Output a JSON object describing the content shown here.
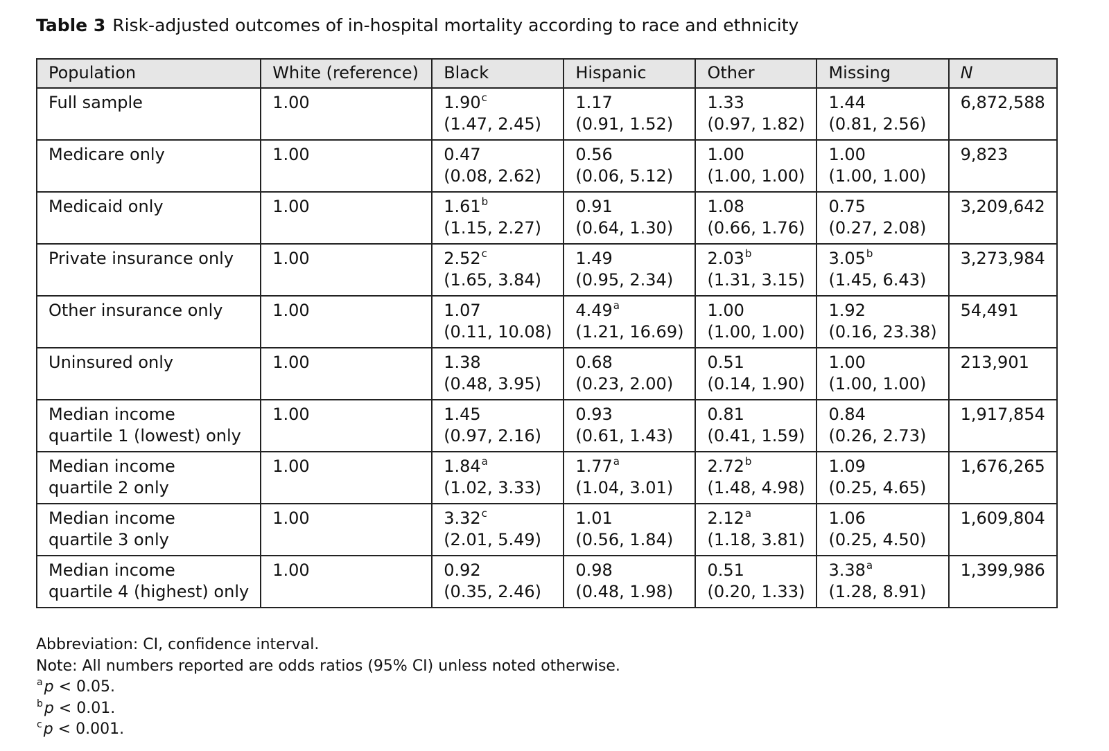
{
  "caption": {
    "label": "Table 3",
    "text": "Risk-adjusted outcomes of in-hospital mortality according to race and ethnicity"
  },
  "headers": [
    "Population",
    "White (reference)",
    "Black",
    "Hispanic",
    "Other",
    "Missing",
    "N"
  ],
  "rows": [
    {
      "population": "Full sample",
      "white": "1.00",
      "black": {
        "or": "1.90",
        "sup": "c",
        "ci": "(1.47, 2.45)"
      },
      "hispanic": {
        "or": "1.17",
        "sup": "",
        "ci": "(0.91, 1.52)"
      },
      "other": {
        "or": "1.33",
        "sup": "",
        "ci": "(0.97, 1.82)"
      },
      "missing": {
        "or": "1.44",
        "sup": "",
        "ci": "(0.81, 2.56)"
      },
      "n": "6,872,588"
    },
    {
      "population": "Medicare only",
      "white": "1.00",
      "black": {
        "or": "0.47",
        "sup": "",
        "ci": "(0.08, 2.62)"
      },
      "hispanic": {
        "or": "0.56",
        "sup": "",
        "ci": "(0.06, 5.12)"
      },
      "other": {
        "or": "1.00",
        "sup": "",
        "ci": "(1.00, 1.00)"
      },
      "missing": {
        "or": "1.00",
        "sup": "",
        "ci": "(1.00, 1.00)"
      },
      "n": "9,823"
    },
    {
      "population": "Medicaid only",
      "white": "1.00",
      "black": {
        "or": "1.61",
        "sup": "b",
        "ci": "(1.15, 2.27)"
      },
      "hispanic": {
        "or": "0.91",
        "sup": "",
        "ci": "(0.64, 1.30)"
      },
      "other": {
        "or": "1.08",
        "sup": "",
        "ci": "(0.66, 1.76)"
      },
      "missing": {
        "or": "0.75",
        "sup": "",
        "ci": "(0.27, 2.08)"
      },
      "n": "3,209,642"
    },
    {
      "population": "Private insurance only",
      "white": "1.00",
      "black": {
        "or": "2.52",
        "sup": "c",
        "ci": "(1.65, 3.84)"
      },
      "hispanic": {
        "or": "1.49",
        "sup": "",
        "ci": "(0.95, 2.34)"
      },
      "other": {
        "or": "2.03",
        "sup": "b",
        "ci": "(1.31, 3.15)"
      },
      "missing": {
        "or": "3.05",
        "sup": "b",
        "ci": "(1.45, 6.43)"
      },
      "n": "3,273,984"
    },
    {
      "population": "Other insurance only",
      "white": "1.00",
      "black": {
        "or": "1.07",
        "sup": "",
        "ci": "(0.11, 10.08)"
      },
      "hispanic": {
        "or": "4.49",
        "sup": "a",
        "ci": "(1.21, 16.69)"
      },
      "other": {
        "or": "1.00",
        "sup": "",
        "ci": "(1.00, 1.00)"
      },
      "missing": {
        "or": "1.92",
        "sup": "",
        "ci": "(0.16, 23.38)"
      },
      "n": "54,491"
    },
    {
      "population": "Uninsured only",
      "white": "1.00",
      "black": {
        "or": "1.38",
        "sup": "",
        "ci": "(0.48, 3.95)"
      },
      "hispanic": {
        "or": "0.68",
        "sup": "",
        "ci": "(0.23, 2.00)"
      },
      "other": {
        "or": "0.51",
        "sup": "",
        "ci": "(0.14, 1.90)"
      },
      "missing": {
        "or": "1.00",
        "sup": "",
        "ci": "(1.00, 1.00)"
      },
      "n": "213,901"
    },
    {
      "population": "Median income\nquartile 1 (lowest) only",
      "white": "1.00",
      "black": {
        "or": "1.45",
        "sup": "",
        "ci": "(0.97, 2.16)"
      },
      "hispanic": {
        "or": "0.93",
        "sup": "",
        "ci": "(0.61, 1.43)"
      },
      "other": {
        "or": "0.81",
        "sup": "",
        "ci": "(0.41, 1.59)"
      },
      "missing": {
        "or": "0.84",
        "sup": "",
        "ci": "(0.26, 2.73)"
      },
      "n": "1,917,854"
    },
    {
      "population": "Median income\nquartile 2 only",
      "white": "1.00",
      "black": {
        "or": "1.84",
        "sup": "a",
        "ci": "(1.02, 3.33)"
      },
      "hispanic": {
        "or": "1.77",
        "sup": "a",
        "ci": "(1.04, 3.01)"
      },
      "other": {
        "or": "2.72",
        "sup": "b",
        "ci": "(1.48, 4.98)"
      },
      "missing": {
        "or": "1.09",
        "sup": "",
        "ci": "(0.25, 4.65)"
      },
      "n": "1,676,265"
    },
    {
      "population": "Median income\nquartile 3 only",
      "white": "1.00",
      "black": {
        "or": "3.32",
        "sup": "c",
        "ci": "(2.01, 5.49)"
      },
      "hispanic": {
        "or": "1.01",
        "sup": "",
        "ci": "(0.56, 1.84)"
      },
      "other": {
        "or": "2.12",
        "sup": "a",
        "ci": "(1.18, 3.81)"
      },
      "missing": {
        "or": "1.06",
        "sup": "",
        "ci": "(0.25, 4.50)"
      },
      "n": "1,609,804"
    },
    {
      "population": "Median income\nquartile 4 (highest) only",
      "white": "1.00",
      "black": {
        "or": "0.92",
        "sup": "",
        "ci": "(0.35, 2.46)"
      },
      "hispanic": {
        "or": "0.98",
        "sup": "",
        "ci": "(0.48, 1.98)"
      },
      "other": {
        "or": "0.51",
        "sup": "",
        "ci": "(0.20, 1.33)"
      },
      "missing": {
        "or": "3.38",
        "sup": "a",
        "ci": "(1.28, 8.91)"
      },
      "n": "1,399,986"
    }
  ],
  "notes": {
    "abbreviation": "Abbreviation: CI, confidence interval.",
    "note": "Note: All numbers reported are odds ratios (95% CI) unless noted otherwise.",
    "footnotes": [
      {
        "mark": "a",
        "p": "p",
        "rest": " < 0.05."
      },
      {
        "mark": "b",
        "p": "p",
        "rest": " < 0.01."
      },
      {
        "mark": "c",
        "p": "p",
        "rest": " < 0.001."
      }
    ]
  }
}
